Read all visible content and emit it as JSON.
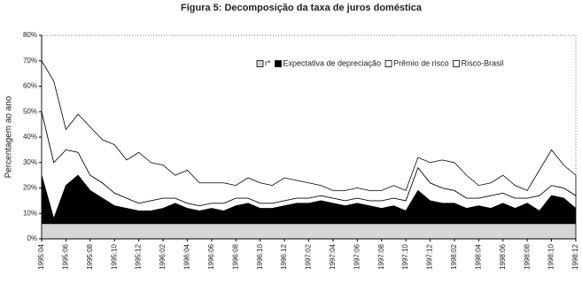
{
  "chart_data": {
    "type": "stacked_area",
    "title": "Figura 5: Decomposição da taxa de juros doméstica",
    "y_label": "Percentagem ao ano",
    "categories": [
      "1995:04",
      null,
      "1995:06",
      null,
      "1995:08",
      null,
      "1995:10",
      null,
      "1995:12",
      null,
      "1996:02",
      null,
      "1996:04",
      null,
      "1996:06",
      null,
      "1996:08",
      null,
      "1996:10",
      null,
      "1996:12",
      null,
      "1997:02",
      null,
      "1997:04",
      null,
      "1997:06",
      null,
      "1997:08",
      null,
      "1997:10",
      null,
      "1997:12",
      null,
      "1998:02",
      null,
      "1998:04",
      null,
      "1998:06",
      null,
      "1998:08",
      null,
      "1998:10",
      null,
      "1998:12"
    ],
    "series": [
      {
        "name": "r*",
        "color": "#d6d6d6",
        "values": [
          6,
          6,
          6,
          6,
          6,
          6,
          6,
          6,
          6,
          6,
          6,
          6,
          6,
          6,
          6,
          6,
          6,
          6,
          6,
          6,
          6,
          6,
          6,
          6,
          6,
          6,
          6,
          6,
          6,
          6,
          6,
          6,
          6,
          6,
          6,
          6,
          6,
          6,
          6,
          6,
          6,
          6,
          6,
          6,
          6
        ]
      },
      {
        "name": "Expectativa de depreciação",
        "color": "#000000",
        "values": [
          19,
          2,
          15,
          19,
          13,
          10,
          7,
          6,
          5,
          5,
          6,
          8,
          6,
          5,
          6,
          5,
          7,
          8,
          6,
          6,
          7,
          8,
          8,
          9,
          8,
          7,
          8,
          7,
          6,
          7,
          5,
          13,
          9,
          8,
          8,
          6,
          7,
          6,
          8,
          6,
          8,
          5,
          11,
          10,
          6
        ]
      },
      {
        "name": "Prêmio de risco",
        "color": "#ffffff",
        "values": [
          25,
          22,
          14,
          9,
          6,
          6,
          5,
          4,
          3,
          4,
          4,
          2,
          2,
          2,
          2,
          3,
          3,
          2,
          2,
          2,
          2,
          2,
          2,
          2,
          2,
          2,
          2,
          2,
          3,
          3,
          4,
          9,
          7,
          6,
          5,
          4,
          3,
          5,
          4,
          4,
          2,
          6,
          4,
          4,
          5
        ]
      },
      {
        "name": "Risco-Brasil",
        "color": "#ffffff",
        "values": [
          20,
          32,
          8,
          15,
          19,
          17,
          19,
          15,
          20,
          15,
          13,
          9,
          13,
          9,
          8,
          8,
          5,
          8,
          8,
          7,
          9,
          7,
          6,
          4,
          3,
          4,
          4,
          4,
          4,
          5,
          4,
          4,
          8,
          11,
          11,
          9,
          5,
          5,
          7,
          5,
          3,
          10,
          14,
          9,
          8
        ]
      }
    ],
    "ylim": [
      0,
      80
    ],
    "yticks": [
      {
        "value": 0,
        "label": "0%"
      },
      {
        "value": 10,
        "label": "10%"
      },
      {
        "value": 20,
        "label": "20%"
      },
      {
        "value": 30,
        "label": "30%"
      },
      {
        "value": 40,
        "label": "40%"
      },
      {
        "value": 50,
        "label": "50%"
      },
      {
        "value": 60,
        "label": "60%"
      },
      {
        "value": 70,
        "label": "70%"
      },
      {
        "value": 80,
        "label": "80%"
      }
    ],
    "grid": false,
    "legend": "top-right"
  }
}
